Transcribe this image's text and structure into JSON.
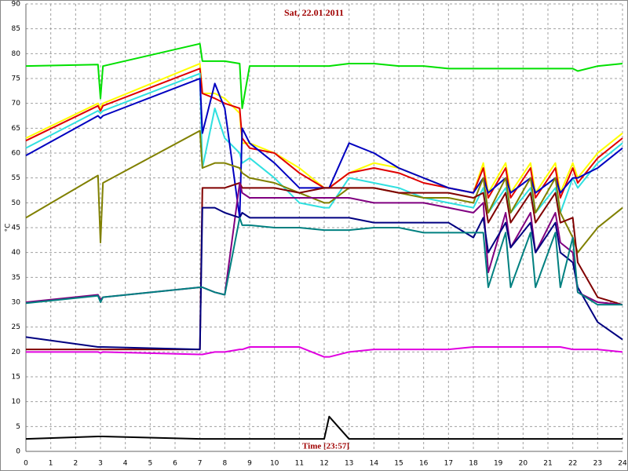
{
  "chart_data": {
    "type": "line",
    "title": "Sat, 22.01.2011",
    "x_label": "Time [23:57]",
    "y_label": "°C",
    "xlim": [
      0,
      24
    ],
    "ylim": [
      0,
      90
    ],
    "xticks": [
      0,
      1,
      2,
      3,
      4,
      5,
      6,
      7,
      8,
      9,
      10,
      11,
      12,
      13,
      14,
      15,
      16,
      17,
      18,
      19,
      20,
      21,
      22,
      23,
      24
    ],
    "yticks": [
      0,
      5,
      10,
      15,
      20,
      25,
      30,
      35,
      40,
      45,
      50,
      55,
      60,
      65,
      70,
      75,
      80,
      85,
      90
    ],
    "grid": true,
    "x": [
      0,
      2.9,
      3,
      3.1,
      7,
      7.1,
      7.6,
      8,
      8.6,
      8.7,
      9,
      10,
      11,
      12,
      12.2,
      13,
      14,
      15,
      16,
      17,
      18,
      18.4,
      18.6,
      19.3,
      19.5,
      20.3,
      20.5,
      21.3,
      21.5,
      22,
      22.2,
      23,
      24
    ],
    "series": [
      {
        "color": "#00e000",
        "values": [
          77.5,
          77.8,
          71,
          77.5,
          82,
          78.5,
          78.5,
          78.5,
          78,
          69,
          77.5,
          77.5,
          77.5,
          77.5,
          77.5,
          78,
          78,
          77.5,
          77.5,
          77,
          77,
          77,
          77,
          77,
          77,
          77,
          77,
          77,
          77,
          77,
          76.5,
          77.5,
          78
        ]
      },
      {
        "color": "#ffff00",
        "values": [
          63,
          70,
          69,
          70,
          78,
          72,
          72,
          71,
          68,
          62,
          62,
          60,
          57,
          53,
          53,
          56,
          58,
          57,
          55,
          53,
          52,
          58,
          52,
          58,
          52,
          58,
          52,
          58,
          52,
          58,
          55,
          60,
          64
        ]
      },
      {
        "color": "#e00000",
        "values": [
          62.5,
          69.5,
          68.5,
          69.5,
          77,
          72,
          71,
          70,
          69,
          63,
          61,
          60,
          56,
          53,
          53,
          56,
          57,
          56,
          54,
          53,
          52,
          57,
          51,
          57,
          51,
          57,
          51,
          57,
          51,
          57,
          54,
          59,
          63
        ]
      },
      {
        "color": "#30e0e0",
        "values": [
          61,
          68.5,
          68,
          68.5,
          76,
          57,
          69,
          63,
          60,
          58,
          59,
          55,
          50,
          49,
          49,
          55,
          54,
          53,
          51,
          50,
          49,
          53,
          48,
          53,
          48,
          53,
          48,
          53,
          48,
          55,
          53,
          58,
          62
        ]
      },
      {
        "color": "#0000c0",
        "values": [
          59.5,
          67.5,
          67,
          67.5,
          75,
          64,
          74,
          69,
          47,
          65,
          62,
          58,
          53,
          53,
          53,
          62,
          60,
          57,
          55,
          53,
          52,
          55,
          52,
          55,
          52,
          55,
          52,
          55,
          52,
          55,
          55,
          57,
          61
        ]
      },
      {
        "color": "#808000",
        "values": [
          47,
          55.5,
          42,
          54,
          64.5,
          57,
          58,
          58,
          57,
          56,
          55,
          54,
          52,
          50,
          50,
          53,
          53,
          52,
          51,
          51,
          50,
          55,
          48,
          55,
          48,
          55,
          48,
          55,
          48,
          43,
          40,
          45,
          49
        ]
      },
      {
        "color": "#800000",
        "values": [
          20.5,
          20.5,
          20.5,
          20.5,
          20.5,
          53,
          53,
          53,
          54,
          53,
          53,
          53,
          52,
          53,
          53,
          53,
          53,
          52,
          52,
          52,
          51,
          52,
          46,
          52,
          46,
          52,
          46,
          52,
          46,
          47,
          38,
          31,
          29.5
        ]
      },
      {
        "color": "#800080",
        "values": [
          30,
          31.5,
          30.5,
          31,
          33,
          33,
          32,
          31.5,
          54,
          52,
          51,
          51,
          51,
          51,
          51,
          51,
          50,
          50,
          50,
          49,
          48,
          50,
          36,
          48,
          41,
          48,
          40,
          48,
          42,
          40,
          32,
          30,
          29.5
        ]
      },
      {
        "color": "#000080",
        "values": [
          23,
          21,
          21,
          21,
          20.5,
          49,
          49,
          48,
          47,
          48,
          47,
          47,
          47,
          47,
          47,
          47,
          46,
          46,
          46,
          46,
          43,
          47,
          40,
          46,
          41,
          46,
          40,
          46,
          40,
          38,
          33,
          26,
          22.5
        ]
      },
      {
        "color": "#008080",
        "values": [
          29.8,
          31.3,
          30,
          31,
          33,
          33,
          32,
          31.5,
          47,
          45.5,
          45.5,
          45,
          45,
          44.5,
          44.5,
          44.5,
          45,
          45,
          44,
          44,
          44,
          44,
          33,
          44,
          33,
          44,
          33,
          44,
          33,
          43,
          32,
          29.5,
          29.5
        ]
      },
      {
        "color": "#e000e0",
        "values": [
          20,
          20,
          19.8,
          20,
          19.5,
          19.5,
          20,
          20,
          20.5,
          20.5,
          21,
          21,
          21,
          19,
          19,
          20,
          20.5,
          20.5,
          20.5,
          20.5,
          21,
          21,
          21,
          21,
          21,
          21,
          21,
          21,
          21,
          20.5,
          20.5,
          20.5,
          20
        ]
      },
      {
        "color": "#000000",
        "values": [
          2.5,
          3,
          3,
          3,
          2.5,
          2.5,
          2.5,
          2.5,
          2.5,
          2.5,
          2.5,
          2.5,
          2.5,
          2.5,
          7,
          2.5,
          2.5,
          2.5,
          2.5,
          2.5,
          2.5,
          2.5,
          2.5,
          2.5,
          2.5,
          2.5,
          2.5,
          2.5,
          2.5,
          2.5,
          2.5,
          2.5,
          2.5
        ]
      }
    ]
  }
}
